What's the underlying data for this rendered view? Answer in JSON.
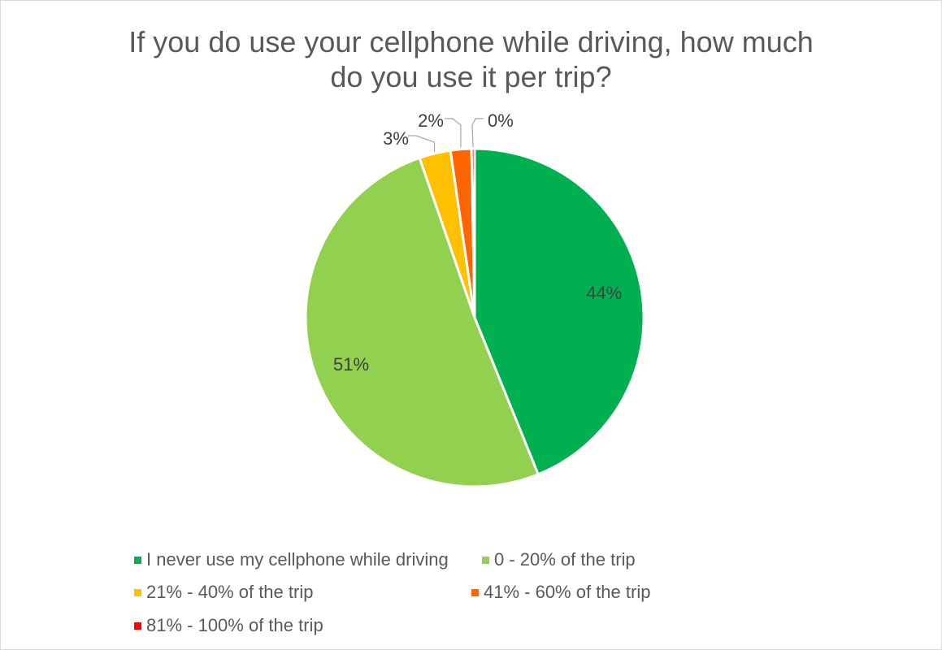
{
  "chart_data": {
    "type": "pie",
    "title_lines": [
      "If you do use your cellphone while driving, how much",
      "do you use it per trip?"
    ],
    "labels": [
      "I never use my cellphone while driving",
      "0 - 20% of the trip",
      "21% - 40% of the trip",
      "41% - 60% of the trip",
      "81% - 100% of the trip"
    ],
    "values": [
      44,
      51,
      3,
      2,
      0.3
    ],
    "data_labels": [
      "44%",
      "51%",
      "3%",
      "2%",
      "0%"
    ],
    "colors": [
      "#00b050",
      "#92d050",
      "#ffc000",
      "#ff6600",
      "#ff0000"
    ],
    "legend_position": "bottom",
    "start_angle_deg": 0,
    "direction": "clockwise"
  }
}
